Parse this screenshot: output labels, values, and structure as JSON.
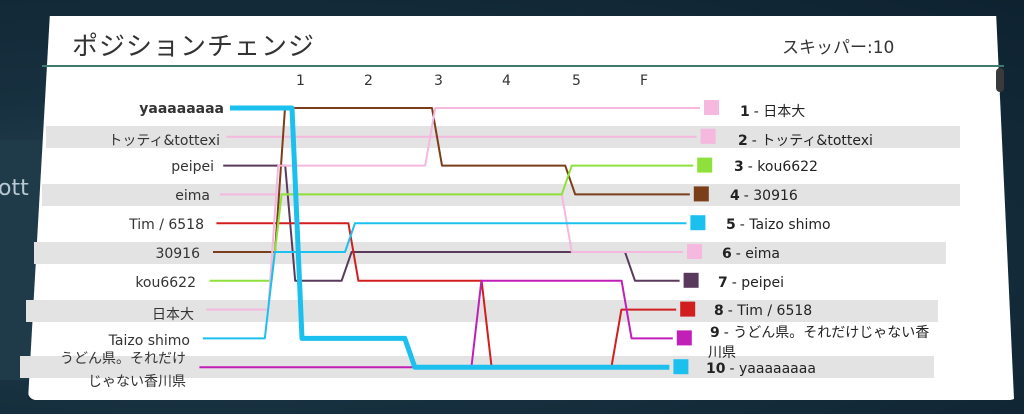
{
  "title": "ポジションチェンジ",
  "skip_label": "スキッパー:10",
  "background_text": "ott",
  "columns": [
    "1",
    "2",
    "3",
    "4",
    "5",
    "F"
  ],
  "start_order": [
    "yaaaaaaaa",
    "トッティ&tottexi",
    "peipei",
    "eima",
    "Tim / 6518",
    "30916",
    "kou6622",
    "日本大",
    "Taizo shimo",
    "うどん県。それだけじゃない香川県"
  ],
  "left_labels": [
    {
      "name": "yaaaaaaaa",
      "bold": true
    },
    {
      "name": "トッティ&tottexi",
      "bold": false
    },
    {
      "name": "peipei",
      "bold": false
    },
    {
      "name": "eima",
      "bold": false
    },
    {
      "name": "Tim / 6518",
      "bold": false
    },
    {
      "name": "30916",
      "bold": false
    },
    {
      "name": "kou6622",
      "bold": false
    },
    {
      "name": "日本大",
      "bold": false
    },
    {
      "name": "Taizo shimo",
      "bold": false
    },
    {
      "name_line1": "うどん県。それだけ",
      "name_line2": "じゃない香川県",
      "bold": false
    }
  ],
  "final_results": [
    {
      "rank": "1",
      "name": "日本大",
      "color": "#f5b8de"
    },
    {
      "rank": "2",
      "name": "トッティ&tottexi",
      "color": "#f5b8de"
    },
    {
      "rank": "3",
      "name": "kou6622",
      "color": "#8ee13a"
    },
    {
      "rank": "4",
      "name": "30916",
      "color": "#7a3e1a"
    },
    {
      "rank": "5",
      "name": "Taizo shimo",
      "color": "#1cc0ee"
    },
    {
      "rank": "6",
      "name": "eima",
      "color": "#f5b8de"
    },
    {
      "rank": "7",
      "name": "peipei",
      "color": "#5a3a5c"
    },
    {
      "rank": "8",
      "name": "Tim / 6518",
      "color": "#d11f1f"
    },
    {
      "rank": "9",
      "name_line1": "うどん県。それだけじゃない香",
      "name_line2": "川県",
      "color": "#c21fb8"
    },
    {
      "rank": "10",
      "name": "yaaaaaaaa",
      "color": "#1cc0ee"
    }
  ],
  "player_tracks": [
    {
      "name": "yaaaaaaaa",
      "color": "#1cc0ee",
      "width": 5,
      "positions": [
        1,
        9,
        9,
        10,
        10,
        10,
        10
      ]
    },
    {
      "name": "トッティ&tottexi",
      "color": "#f5b8de",
      "width": 2,
      "positions": [
        2,
        2,
        2,
        2,
        2,
        2,
        2
      ]
    },
    {
      "name": "peipei",
      "color": "#5a3a5c",
      "width": 2,
      "positions": [
        3,
        7,
        6,
        6,
        6,
        6,
        7
      ]
    },
    {
      "name": "eima",
      "color": "#f5b8de",
      "width": 2,
      "positions": [
        4,
        4,
        4,
        4,
        4,
        6,
        6
      ]
    },
    {
      "name": "Tim / 6518",
      "color": "#d11f1f",
      "width": 2,
      "positions": [
        5,
        5,
        7,
        7,
        10,
        10,
        8
      ]
    },
    {
      "name": "30916",
      "color": "#7a3e1a",
      "width": 2,
      "positions": [
        6,
        1,
        1,
        3,
        3,
        4,
        4
      ]
    },
    {
      "name": "kou6622",
      "color": "#8ee13a",
      "width": 2,
      "positions": [
        7,
        4,
        4,
        4,
        4,
        3,
        3
      ]
    },
    {
      "name": "日本大",
      "color": "#f5b8de",
      "width": 2,
      "positions": [
        8,
        3,
        3,
        1,
        1,
        1,
        1
      ]
    },
    {
      "name": "Taizo shimo",
      "color": "#1cc0ee",
      "width": 2,
      "positions": [
        9,
        6,
        5,
        5,
        5,
        5,
        5
      ]
    },
    {
      "name": "うどん県。それだけじゃない香川県",
      "color": "#c21fb8",
      "width": 2,
      "positions": [
        10,
        10,
        10,
        10,
        7,
        7,
        9
      ]
    }
  ]
}
